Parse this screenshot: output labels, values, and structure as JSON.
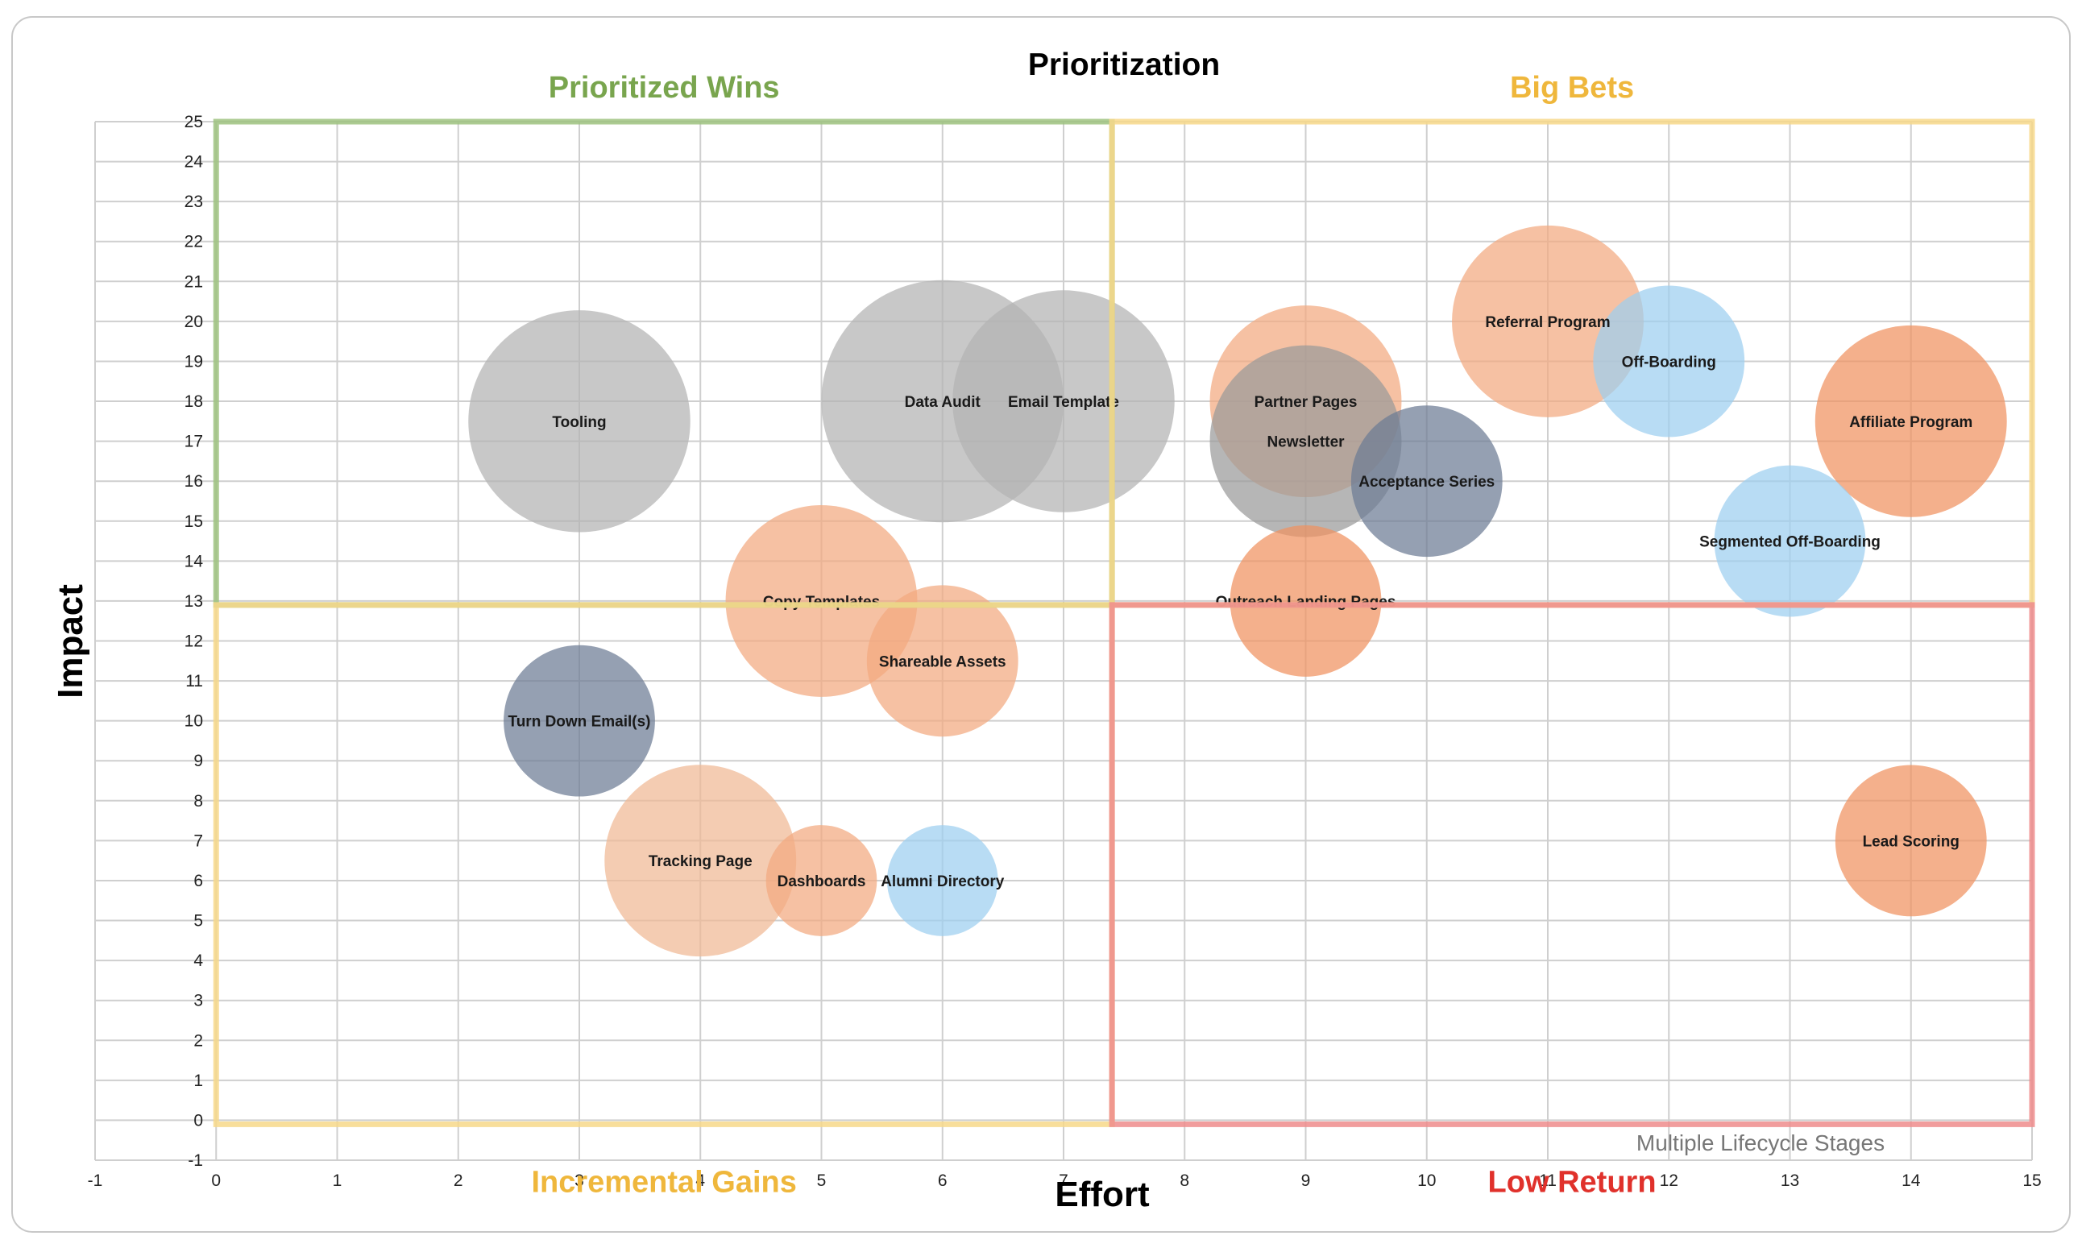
{
  "chart_data": {
    "type": "scatter",
    "title": "Prioritization",
    "xlabel": "Effort",
    "ylabel": "Impact",
    "xlim": [
      -1,
      15
    ],
    "ylim": [
      -1,
      25
    ],
    "grid": true,
    "x_ticks": [
      -1,
      0,
      1,
      2,
      3,
      4,
      5,
      6,
      7,
      8,
      9,
      10,
      11,
      12,
      13,
      14,
      15
    ],
    "y_ticks": [
      -1,
      0,
      1,
      2,
      3,
      4,
      5,
      6,
      7,
      8,
      9,
      10,
      11,
      12,
      13,
      14,
      15,
      16,
      17,
      18,
      19,
      20,
      21,
      22,
      23,
      24,
      25
    ],
    "watermark": "Multiple Lifecycle Stages",
    "quadrants": [
      {
        "label": "Prioritized Wins",
        "x_range": [
          0,
          7.4
        ],
        "y_range": [
          12.9,
          25
        ],
        "color": "#9dc27f"
      },
      {
        "label": "Big Bets",
        "x_range": [
          7.4,
          15
        ],
        "y_range": [
          12.9,
          25
        ],
        "color": "#f7d889"
      },
      {
        "label": "Incremental Gains",
        "x_range": [
          0,
          7.4
        ],
        "y_range": [
          -0.1,
          12.9
        ],
        "color": "#f7d889"
      },
      {
        "label": "Low Return",
        "x_range": [
          7.4,
          15
        ],
        "y_range": [
          -0.1,
          12.9
        ],
        "color": "#ee8c8c"
      }
    ],
    "quadrant_label_colors": {
      "Prioritized Wins": "#79a54e",
      "Big Bets": "#efb73c",
      "Incremental Gains": "#efb73c",
      "Low Return": "#e0312b"
    },
    "points": [
      {
        "label": "Tooling",
        "x": 3,
        "y": 17.5,
        "size": 2.2,
        "color": "#b3b3b3"
      },
      {
        "label": "Data Audit",
        "x": 6,
        "y": 18,
        "size": 2.4,
        "color": "#b3b3b3"
      },
      {
        "label": "Email Template",
        "x": 7,
        "y": 18,
        "size": 2.2,
        "color": "#b3b3b3"
      },
      {
        "label": "Copy Templates",
        "x": 5,
        "y": 13,
        "size": 1.9,
        "color": "#f2a97f"
      },
      {
        "label": "Shareable Assets",
        "x": 6,
        "y": 11.5,
        "size": 1.5,
        "color": "#f2a97f"
      },
      {
        "label": "Turn Down Email(s)",
        "x": 3,
        "y": 10,
        "size": 1.5,
        "color": "#6c7b94"
      },
      {
        "label": "Tracking Page",
        "x": 4,
        "y": 6.5,
        "size": 1.9,
        "color": "#f0b894"
      },
      {
        "label": "Dashboards",
        "x": 5,
        "y": 6,
        "size": 1.1,
        "color": "#f2a97f"
      },
      {
        "label": "Alumni Directory",
        "x": 6,
        "y": 6,
        "size": 1.1,
        "color": "#9ccff0"
      },
      {
        "label": "Partner Pages",
        "x": 9,
        "y": 18,
        "size": 1.9,
        "color": "#f2a97f"
      },
      {
        "label": "Newsletter",
        "x": 9,
        "y": 17,
        "size": 1.9,
        "color": "#9a9a9a"
      },
      {
        "label": "Acceptance Series",
        "x": 10,
        "y": 16,
        "size": 1.5,
        "color": "#6c7b94"
      },
      {
        "label": "Outreach Landing Pages",
        "x": 9,
        "y": 13,
        "size": 1.5,
        "color": "#f0925f"
      },
      {
        "label": "Referral Program",
        "x": 11,
        "y": 20,
        "size": 1.9,
        "color": "#f2a97f"
      },
      {
        "label": "Off-Boarding",
        "x": 12,
        "y": 19,
        "size": 1.5,
        "color": "#9ccff0"
      },
      {
        "label": "Affiliate Program",
        "x": 14,
        "y": 17.5,
        "size": 1.9,
        "color": "#f0925f"
      },
      {
        "label": "Segmented Off-Boarding",
        "x": 13,
        "y": 14.5,
        "size": 1.5,
        "color": "#9ccff0"
      },
      {
        "label": "Lead Scoring",
        "x": 14,
        "y": 7,
        "size": 1.5,
        "color": "#f0925f"
      }
    ]
  }
}
